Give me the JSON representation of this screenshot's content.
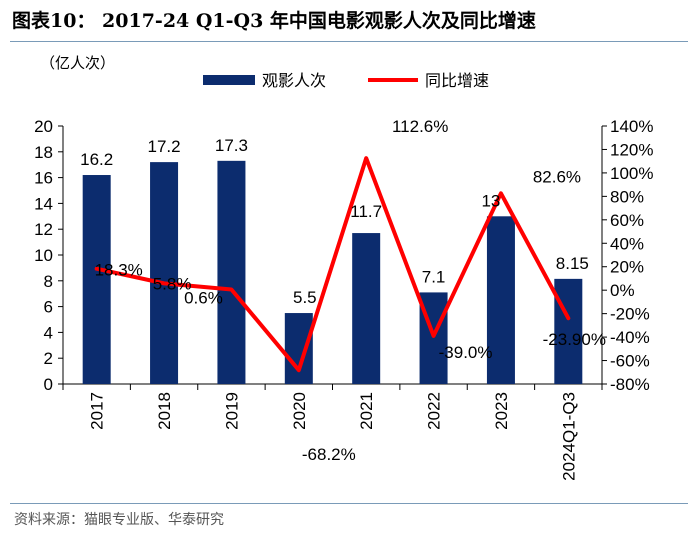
{
  "header": {
    "title": "图表10： 2017-24 Q1-Q3 年中国电影观影人次及同比增速",
    "source": "资料来源：猫眼专业版、华泰研究"
  },
  "colors": {
    "bar": "#0c2c6e",
    "line": "#ff0000",
    "rule": "#7a9bb8"
  },
  "chart_data": {
    "type": "bar",
    "title": "2017-24 Q1-Q3 年中国电影观影人次及同比增速",
    "unit_label": "（亿人次）",
    "categories": [
      "2017",
      "2018",
      "2019",
      "2020",
      "2021",
      "2022",
      "2023",
      "2024Q1-Q3"
    ],
    "series": [
      {
        "name": "观影人次",
        "type": "bar",
        "axis": "left",
        "values": [
          16.2,
          17.2,
          17.3,
          5.5,
          11.7,
          7.1,
          13,
          8.15
        ],
        "labels": [
          "16.2",
          "17.2",
          "17.3",
          "5.5",
          "11.7",
          "7.1",
          "13",
          "8.15"
        ]
      },
      {
        "name": "同比增速",
        "type": "line",
        "axis": "right",
        "values": [
          18.3,
          5.8,
          0.6,
          -68.2,
          112.6,
          -39.0,
          82.6,
          -23.9
        ],
        "labels": [
          "18.3%",
          "5.8%",
          "0.6%",
          "-68.2%",
          "112.6%",
          "-39.0%",
          "82.6%",
          "-23.90%"
        ]
      }
    ],
    "left_axis": {
      "min": 0,
      "max": 20,
      "ticks": [
        "0",
        "2",
        "4",
        "6",
        "8",
        "10",
        "12",
        "14",
        "16",
        "18",
        "20"
      ]
    },
    "right_axis": {
      "min": -80,
      "max": 140,
      "ticks": [
        "-80%",
        "-60%",
        "-40%",
        "-20%",
        "0%",
        "20%",
        "40%",
        "60%",
        "80%",
        "100%",
        "120%",
        "140%"
      ]
    },
    "legend_position": "top-center",
    "grid": false
  }
}
